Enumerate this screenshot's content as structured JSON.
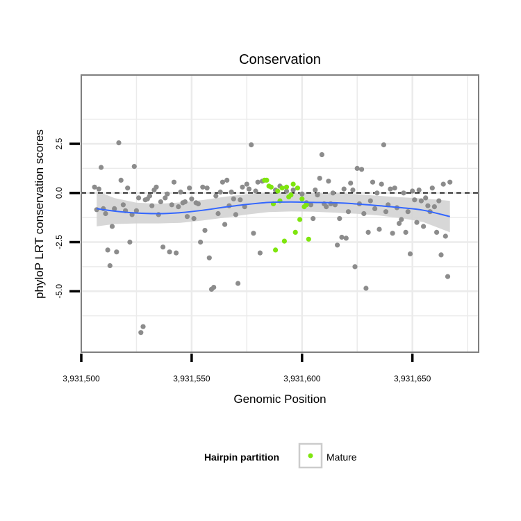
{
  "chart_data": {
    "type": "scatter",
    "title": "Conservation",
    "xlabel": "Genomic Position",
    "ylabel": "phyloP LRT conservation scores",
    "xlim": [
      3931500,
      3931680
    ],
    "ylim": [
      -8.1,
      6.0
    ],
    "x_ticks": [
      3931500,
      3931550,
      3931600,
      3931650
    ],
    "x_tick_labels": [
      "3,931,500",
      "3,931,550",
      "3,931,600",
      "3,931,650"
    ],
    "y_ticks": [
      2.5,
      0.0,
      -2.5,
      -5.0
    ],
    "y_tick_labels": [
      "2.5",
      "0.0",
      "-2.5",
      "-5.0"
    ],
    "reference_line": {
      "y": 0,
      "style": "dashed"
    },
    "grid": true,
    "legend": {
      "title": "Hairpin partition",
      "entries": [
        "Mature"
      ],
      "placement": "bottom"
    },
    "colors": {
      "other": "#8c8c8c",
      "mature": "#7fe50f",
      "smooth_line": "#3366ff",
      "confidence_band": "#d3d3d3",
      "panel_border": "#7f7f7f",
      "grid": "#ebebeb"
    },
    "series": [
      {
        "name": "",
        "color": "#8c8c8c",
        "points": [
          [
            3931506,
            0.3
          ],
          [
            3931507,
            -0.85
          ],
          [
            3931508,
            0.2
          ],
          [
            3931509,
            1.3
          ],
          [
            3931510,
            -0.8
          ],
          [
            3931511,
            -1.05
          ],
          [
            3931512,
            -2.9
          ],
          [
            3931513,
            -3.7
          ],
          [
            3931514,
            -1.7
          ],
          [
            3931515,
            -0.8
          ],
          [
            3931516,
            -3.0
          ],
          [
            3931517,
            2.55
          ],
          [
            3931518,
            0.65
          ],
          [
            3931519,
            -0.6
          ],
          [
            3931520,
            -0.9
          ],
          [
            3931521,
            0.25
          ],
          [
            3931522,
            -2.5
          ],
          [
            3931523,
            -1.1
          ],
          [
            3931524,
            1.35
          ],
          [
            3931525,
            -0.9
          ],
          [
            3931526,
            -0.25
          ],
          [
            3931527,
            -7.1
          ],
          [
            3931528,
            -6.8
          ],
          [
            3931529,
            -0.35
          ],
          [
            3931530,
            -0.3
          ],
          [
            3931531,
            -0.15
          ],
          [
            3931532,
            -0.65
          ],
          [
            3931533,
            0.15
          ],
          [
            3931534,
            0.3
          ],
          [
            3931535,
            -1.1
          ],
          [
            3931536,
            -0.45
          ],
          [
            3931537,
            -2.75
          ],
          [
            3931538,
            -0.25
          ],
          [
            3931539,
            -0.05
          ],
          [
            3931540,
            -3.0
          ],
          [
            3931541,
            -0.6
          ],
          [
            3931542,
            0.55
          ],
          [
            3931543,
            -3.05
          ],
          [
            3931544,
            -0.7
          ],
          [
            3931545,
            0.05
          ],
          [
            3931546,
            -0.5
          ],
          [
            3931547,
            -0.45
          ],
          [
            3931548,
            -1.2
          ],
          [
            3931549,
            0.25
          ],
          [
            3931550,
            -0.3
          ],
          [
            3931551,
            -1.3
          ],
          [
            3931552,
            -0.5
          ],
          [
            3931553,
            -0.55
          ],
          [
            3931554,
            -2.5
          ],
          [
            3931555,
            0.3
          ],
          [
            3931556,
            -1.9
          ],
          [
            3931557,
            0.25
          ],
          [
            3931558,
            -3.3
          ],
          [
            3931559,
            -4.9
          ],
          [
            3931560,
            -4.8
          ],
          [
            3931561,
            -0.15
          ],
          [
            3931562,
            -1.05
          ],
          [
            3931563,
            0.05
          ],
          [
            3931564,
            0.55
          ],
          [
            3931565,
            -1.6
          ],
          [
            3931566,
            0.65
          ],
          [
            3931567,
            -0.65
          ],
          [
            3931568,
            0.05
          ],
          [
            3931569,
            -0.3
          ],
          [
            3931570,
            -1.1
          ],
          [
            3931571,
            -4.6
          ],
          [
            3931572,
            -0.35
          ],
          [
            3931573,
            0.3
          ],
          [
            3931574,
            -0.7
          ],
          [
            3931575,
            0.45
          ],
          [
            3931576,
            0.2
          ],
          [
            3931577,
            2.45
          ],
          [
            3931578,
            -2.05
          ],
          [
            3931579,
            0.1
          ],
          [
            3931580,
            0.55
          ],
          [
            3931581,
            -3.05
          ],
          [
            3931582,
            0.6
          ],
          [
            3931588,
            0.15
          ],
          [
            3931590,
            0.35
          ],
          [
            3931593,
            0.1
          ],
          [
            3931596,
            0.15
          ],
          [
            3931600,
            -0.05
          ],
          [
            3931602,
            -0.5
          ],
          [
            3931604,
            -0.6
          ],
          [
            3931605,
            -1.3
          ],
          [
            3931606,
            0.15
          ],
          [
            3931607,
            -0.1
          ],
          [
            3931608,
            0.75
          ],
          [
            3931609,
            1.95
          ],
          [
            3931610,
            -0.55
          ],
          [
            3931611,
            -0.7
          ],
          [
            3931612,
            0.6
          ],
          [
            3931613,
            -0.55
          ],
          [
            3931614,
            0.0
          ],
          [
            3931615,
            -0.6
          ],
          [
            3931616,
            -2.65
          ],
          [
            3931617,
            -1.3
          ],
          [
            3931618,
            -2.25
          ],
          [
            3931619,
            0.2
          ],
          [
            3931620,
            -2.3
          ],
          [
            3931621,
            -0.95
          ],
          [
            3931622,
            0.5
          ],
          [
            3931623,
            0.15
          ],
          [
            3931624,
            -3.75
          ],
          [
            3931625,
            1.25
          ],
          [
            3931626,
            -0.55
          ],
          [
            3931627,
            1.2
          ],
          [
            3931628,
            -1.05
          ],
          [
            3931629,
            -4.85
          ],
          [
            3931630,
            -2.0
          ],
          [
            3931631,
            -0.4
          ],
          [
            3931632,
            0.55
          ],
          [
            3931633,
            -0.8
          ],
          [
            3931634,
            0.0
          ],
          [
            3931635,
            -1.85
          ],
          [
            3931636,
            0.45
          ],
          [
            3931637,
            2.45
          ],
          [
            3931638,
            -0.95
          ],
          [
            3931639,
            -0.6
          ],
          [
            3931640,
            0.2
          ],
          [
            3931641,
            -2.05
          ],
          [
            3931642,
            0.25
          ],
          [
            3931643,
            -0.75
          ],
          [
            3931644,
            -1.55
          ],
          [
            3931645,
            -1.35
          ],
          [
            3931646,
            0.0
          ],
          [
            3931647,
            -2.0
          ],
          [
            3931648,
            -0.95
          ],
          [
            3931649,
            -3.1
          ],
          [
            3931650,
            0.1
          ],
          [
            3931651,
            -0.35
          ],
          [
            3931652,
            -1.5
          ],
          [
            3931653,
            0.15
          ],
          [
            3931654,
            -0.4
          ],
          [
            3931655,
            -1.7
          ],
          [
            3931656,
            -0.25
          ],
          [
            3931657,
            -0.65
          ],
          [
            3931658,
            -0.95
          ],
          [
            3931659,
            0.25
          ],
          [
            3931660,
            -0.7
          ],
          [
            3931661,
            -2.0
          ],
          [
            3931662,
            -0.4
          ],
          [
            3931663,
            -3.15
          ],
          [
            3931664,
            0.45
          ],
          [
            3931665,
            -2.2
          ],
          [
            3931666,
            -4.25
          ],
          [
            3931667,
            0.55
          ]
        ]
      },
      {
        "name": "Mature",
        "color": "#7fe50f",
        "points": [
          [
            3931583,
            0.65
          ],
          [
            3931584,
            0.65
          ],
          [
            3931585,
            0.35
          ],
          [
            3931586,
            0.3
          ],
          [
            3931587,
            -0.55
          ],
          [
            3931588,
            -2.9
          ],
          [
            3931589,
            0.1
          ],
          [
            3931590,
            -0.4
          ],
          [
            3931591,
            0.25
          ],
          [
            3931592,
            -2.45
          ],
          [
            3931593,
            0.3
          ],
          [
            3931594,
            -0.2
          ],
          [
            3931595,
            -0.1
          ],
          [
            3931596,
            0.45
          ],
          [
            3931597,
            -2.0
          ],
          [
            3931598,
            0.25
          ],
          [
            3931599,
            -1.35
          ],
          [
            3931600,
            -0.3
          ],
          [
            3931601,
            -0.7
          ],
          [
            3931602,
            -0.6
          ],
          [
            3931603,
            -2.35
          ]
        ]
      }
    ],
    "smooth_curve": {
      "x": [
        3931507,
        3931515,
        3931525,
        3931535,
        3931545,
        3931555,
        3931565,
        3931575,
        3931585,
        3931595,
        3931605,
        3931615,
        3931625,
        3931635,
        3931645,
        3931655,
        3931667
      ],
      "y": [
        -0.8,
        -0.92,
        -1.02,
        -1.05,
        -1.0,
        -0.88,
        -0.72,
        -0.58,
        -0.48,
        -0.46,
        -0.48,
        -0.5,
        -0.56,
        -0.65,
        -0.75,
        -0.88,
        -1.2
      ],
      "lower": [
        -1.7,
        -1.58,
        -1.55,
        -1.55,
        -1.52,
        -1.4,
        -1.25,
        -1.1,
        -0.97,
        -0.94,
        -0.95,
        -1.0,
        -1.06,
        -1.15,
        -1.28,
        -1.48,
        -2.0
      ],
      "upper": [
        0.1,
        -0.26,
        -0.49,
        -0.55,
        -0.48,
        -0.36,
        -0.19,
        -0.06,
        0.01,
        0.02,
        -0.01,
        0.0,
        -0.06,
        -0.15,
        -0.22,
        -0.28,
        -0.4
      ]
    }
  }
}
